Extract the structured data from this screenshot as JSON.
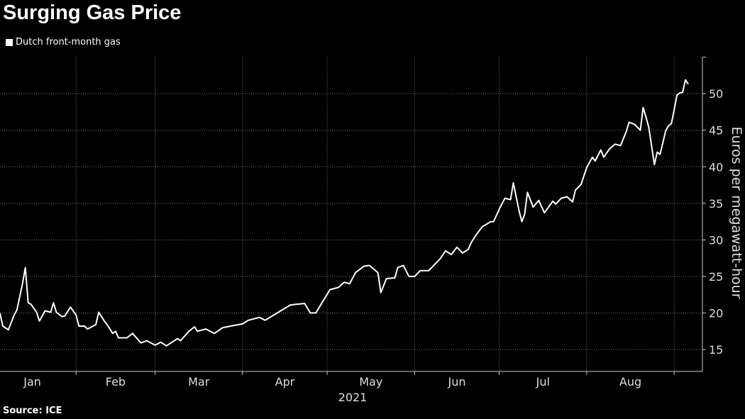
{
  "chart_data": {
    "type": "line",
    "title": "Surging Gas Price",
    "legend": [
      "Dutch front-month gas"
    ],
    "legend_placement": "top-left",
    "ylabel": "Euros per megawatt-hour",
    "xlabel": "2021",
    "source": "Source: ICE",
    "ylim": [
      12,
      55
    ],
    "yticks": [
      15,
      20,
      25,
      30,
      35,
      40,
      45,
      50
    ],
    "x_unit": "day of year 2021",
    "xlim": [
      4,
      249
    ],
    "months": [
      {
        "label": "Jan",
        "start": 0
      },
      {
        "label": "Feb",
        "start": 31
      },
      {
        "label": "Mar",
        "start": 59
      },
      {
        "label": "Apr",
        "start": 90
      },
      {
        "label": "May",
        "start": 120
      },
      {
        "label": "Jun",
        "start": 151
      },
      {
        "label": "Jul",
        "start": 181
      },
      {
        "label": "Aug",
        "start": 212
      },
      {
        "label": "",
        "start": 243
      }
    ],
    "grid": true,
    "series": [
      {
        "name": "Dutch front-month gas",
        "color": "#ffffff",
        "x": [
          4,
          5,
          7,
          9,
          10,
          12,
          13,
          14,
          15,
          17,
          18,
          20,
          22,
          23,
          24,
          26,
          27,
          29,
          31,
          32,
          34,
          35,
          38,
          39,
          41,
          42,
          44,
          45,
          46,
          49,
          51,
          54,
          56,
          59,
          61,
          63,
          67,
          68,
          71,
          73,
          74,
          77,
          80,
          83,
          87,
          90,
          92,
          96,
          98,
          101,
          107,
          112,
          114,
          116,
          118,
          121,
          124,
          126,
          128,
          130,
          133,
          135,
          138,
          139,
          141,
          144,
          145,
          147,
          149,
          151,
          153,
          156,
          160,
          162,
          164,
          166,
          168,
          170,
          171,
          173,
          175,
          178,
          179,
          181,
          183,
          185,
          186,
          188,
          189,
          190,
          191,
          193,
          195,
          197,
          200,
          201,
          203,
          205,
          207,
          208,
          210,
          212,
          214,
          215,
          217,
          218,
          220,
          222,
          224,
          226,
          227,
          229,
          231,
          232,
          233,
          234,
          236,
          237,
          238,
          240,
          241,
          242,
          243,
          244,
          245,
          246,
          247,
          248
        ],
        "y": [
          20,
          18.2,
          17.7,
          19.7,
          20.4,
          24,
          26.2,
          21.4,
          21.2,
          20.1,
          18.9,
          20.3,
          20.1,
          21.4,
          20.1,
          19.5,
          19.6,
          20.8,
          19.7,
          18.2,
          18.2,
          17.8,
          18.4,
          20.1,
          18.9,
          18.4,
          17.2,
          17.5,
          16.6,
          16.6,
          17.2,
          15.9,
          16.2,
          15.6,
          16,
          15.5,
          16.5,
          16.2,
          17.5,
          18.1,
          17.5,
          17.8,
          17.2,
          18,
          18.3,
          18.5,
          19,
          19.4,
          19,
          19.7,
          21.1,
          21.3,
          20,
          20,
          21.3,
          23.2,
          23.5,
          24.2,
          24,
          25.5,
          26.4,
          26.5,
          25.5,
          22.8,
          24.7,
          24.8,
          26.2,
          26.5,
          25,
          25,
          25.8,
          25.8,
          27.4,
          28.5,
          28,
          29,
          28.2,
          28.7,
          29.6,
          30.8,
          31.8,
          32.5,
          32.5,
          34.2,
          35.7,
          35.5,
          37.8,
          34,
          32.5,
          33.5,
          36.5,
          34.5,
          35.4,
          33.7,
          35.3,
          34.9,
          35.7,
          35.9,
          35.2,
          36.8,
          37.6,
          39.9,
          41.3,
          40.8,
          42.3,
          41.3,
          42.4,
          43.1,
          42.9,
          44.8,
          46.1,
          45.8,
          45,
          48.1,
          46.8,
          45.4,
          40.3,
          42,
          41.7,
          44.9,
          45.6,
          45.9,
          47.8,
          49.8,
          50.1,
          50.2,
          51.9,
          51.3
        ]
      }
    ]
  }
}
